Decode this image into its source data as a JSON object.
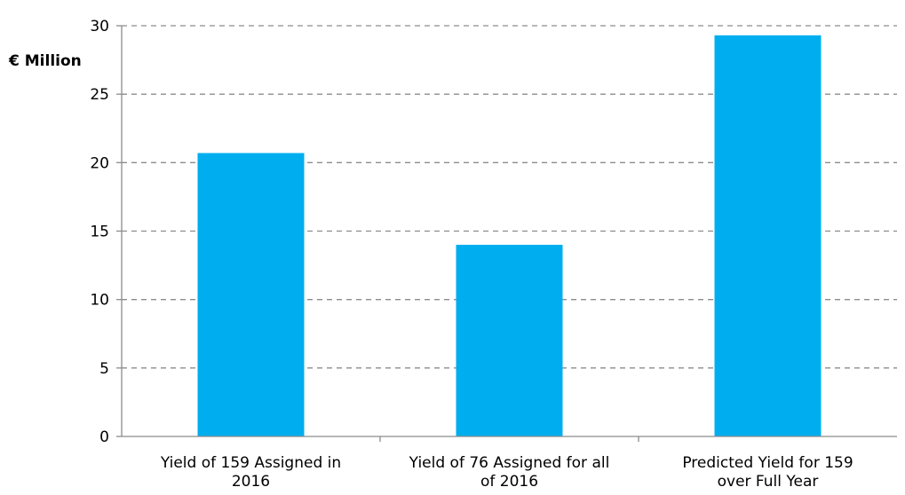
{
  "chart_data": {
    "type": "bar",
    "ylabel": "€ Million",
    "categories": [
      [
        "Yield of 159 Assigned in",
        "2016"
      ],
      [
        "Yield of 76 Assigned for all",
        "of 2016"
      ],
      [
        "Predicted Yield for 159",
        "over Full Year"
      ]
    ],
    "values": [
      20.7,
      14.0,
      29.3
    ],
    "ylim": [
      0,
      30
    ],
    "yticks": [
      0,
      5,
      10,
      15,
      20,
      25,
      30
    ],
    "grid": true,
    "grid_style": "dashed",
    "legend": "none",
    "colors": {
      "bar": "#00AEEF",
      "grid": "#8c8c8c",
      "axis": "#8c8c8c"
    }
  }
}
